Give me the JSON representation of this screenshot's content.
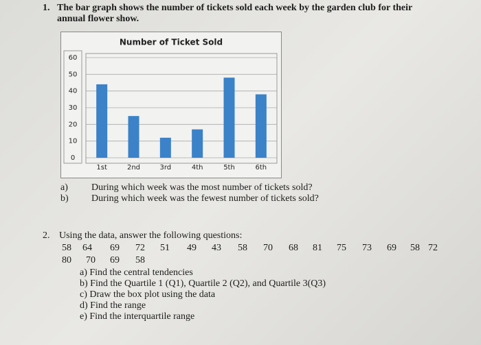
{
  "question1": {
    "number": "1.",
    "lines": [
      "The bar graph shows the number of tickets sold each week by the garden club for their",
      "annual flower show."
    ],
    "parts": [
      {
        "label": "a)",
        "text": "During which week was the most number of tickets sold?"
      },
      {
        "label": "b)",
        "text": "During which week was the fewest number of tickets sold?"
      }
    ]
  },
  "chart_data": {
    "type": "bar",
    "title": "Number of Ticket Sold",
    "categories": [
      "1st",
      "2nd",
      "3rd",
      "4th",
      "5th",
      "6th"
    ],
    "values": [
      44,
      25,
      12,
      17,
      48,
      38
    ],
    "color": "#3b82c8",
    "ylim": [
      0,
      60
    ],
    "yticks": [
      0,
      10,
      20,
      30,
      40,
      50,
      60
    ],
    "grid": true
  },
  "question2": {
    "number": "2.",
    "text": "Using the data, answer the following questions:",
    "data": [
      [
        58,
        64,
        69,
        72,
        51,
        49,
        43,
        58,
        70,
        68,
        81,
        75,
        73,
        69,
        58,
        72
      ],
      [
        80,
        70,
        69,
        58
      ]
    ],
    "parts": [
      "a) Find the central tendencies",
      "b) Find the Quartile 1 (Q1), Quartile 2 (Q2), and Quartile 3(Q3)",
      "c) Draw the box plot using the data",
      "d) Find the range",
      "e) Find the interquartile range"
    ]
  }
}
